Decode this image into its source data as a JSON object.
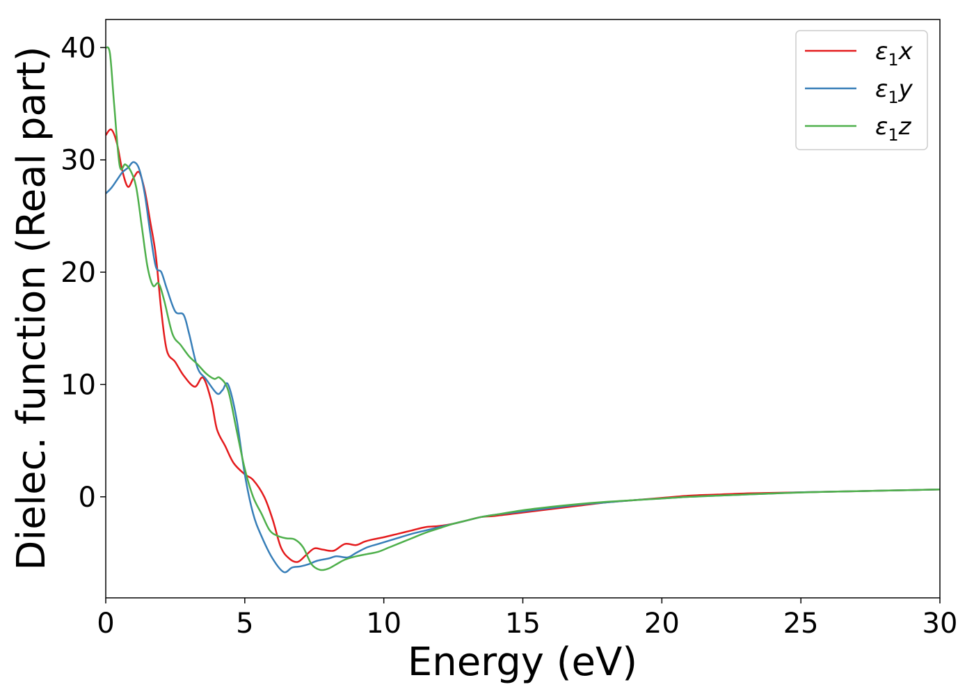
{
  "chart_data": {
    "type": "line",
    "title": "",
    "xlabel": "Energy (eV)",
    "ylabel": "Dielec. function (Real part)",
    "xlim": [
      0,
      30
    ],
    "ylim": [
      -9,
      42.5
    ],
    "xticks": [
      0,
      5,
      10,
      15,
      20,
      25,
      30
    ],
    "yticks": [
      0,
      10,
      20,
      30,
      40
    ],
    "grid": false,
    "legend_position": "top-right",
    "series": [
      {
        "name": "ε1x",
        "symbol": "ε",
        "subscript": "1",
        "suffix": "x",
        "color": "#e41a1c",
        "x": [
          0,
          0.2,
          0.4,
          0.6,
          0.8,
          1.0,
          1.2,
          1.4,
          1.6,
          1.8,
          2.0,
          2.2,
          2.5,
          2.8,
          3.2,
          3.5,
          3.8,
          4.0,
          4.3,
          4.6,
          5.0,
          5.3,
          5.7,
          6.0,
          6.3,
          6.6,
          6.9,
          7.2,
          7.5,
          7.8,
          8.2,
          8.6,
          9.0,
          9.3,
          9.6,
          10.0,
          10.5,
          11.0,
          11.5,
          12.0,
          12.5,
          13.0,
          13.5,
          14.0,
          15.0,
          16.0,
          17.0,
          18.0,
          19.0,
          20.0,
          21.0,
          22.0,
          23.0,
          24.0,
          25.0,
          26.0,
          27.0,
          28.0,
          29.0,
          30.0
        ],
        "y": [
          32.2,
          32.7,
          31.5,
          29.0,
          27.6,
          28.4,
          28.9,
          27.3,
          24.5,
          21.5,
          16.5,
          13.0,
          12.0,
          10.8,
          9.8,
          10.6,
          8.5,
          6.0,
          4.5,
          3.0,
          2.0,
          1.5,
          0.0,
          -2.0,
          -4.5,
          -5.5,
          -5.8,
          -5.2,
          -4.6,
          -4.7,
          -4.8,
          -4.2,
          -4.3,
          -4.0,
          -3.8,
          -3.6,
          -3.3,
          -3.0,
          -2.7,
          -2.6,
          -2.4,
          -2.1,
          -1.8,
          -1.7,
          -1.4,
          -1.1,
          -0.8,
          -0.5,
          -0.3,
          -0.1,
          0.1,
          0.2,
          0.3,
          0.35,
          0.4,
          0.45,
          0.5,
          0.55,
          0.6,
          0.65
        ]
      },
      {
        "name": "ε1y",
        "symbol": "ε",
        "subscript": "1",
        "suffix": "y",
        "color": "#377eb8",
        "x": [
          0,
          0.2,
          0.4,
          0.6,
          0.8,
          1.0,
          1.2,
          1.4,
          1.6,
          1.8,
          2.0,
          2.2,
          2.5,
          2.8,
          3.0,
          3.3,
          3.6,
          4.0,
          4.2,
          4.4,
          4.7,
          5.0,
          5.3,
          5.6,
          6.0,
          6.4,
          6.7,
          7.0,
          7.3,
          7.6,
          8.0,
          8.3,
          8.7,
          9.0,
          9.4,
          9.8,
          10.2,
          10.6,
          11.0,
          11.5,
          12.0,
          12.5,
          13.0,
          13.5,
          14.0,
          15.0,
          16.0,
          17.0,
          18.0,
          19.0,
          20.0,
          21.0,
          22.0,
          23.0,
          24.0,
          25.0,
          26.0,
          27.0,
          28.0,
          29.0,
          30.0
        ],
        "y": [
          27.0,
          27.5,
          28.2,
          28.9,
          29.3,
          29.8,
          29.2,
          27.0,
          23.5,
          20.5,
          20.0,
          18.5,
          16.5,
          16.2,
          14.5,
          11.5,
          10.5,
          9.2,
          9.5,
          10.0,
          7.0,
          2.0,
          -1.5,
          -3.5,
          -5.5,
          -6.7,
          -6.3,
          -6.2,
          -6.0,
          -5.7,
          -5.5,
          -5.3,
          -5.4,
          -5.0,
          -4.5,
          -4.2,
          -3.9,
          -3.6,
          -3.3,
          -3.0,
          -2.7,
          -2.4,
          -2.1,
          -1.8,
          -1.6,
          -1.3,
          -1.0,
          -0.7,
          -0.5,
          -0.3,
          -0.15,
          0.0,
          0.1,
          0.2,
          0.3,
          0.4,
          0.45,
          0.5,
          0.55,
          0.6,
          0.65
        ]
      },
      {
        "name": "ε1z",
        "symbol": "ε",
        "subscript": "1",
        "suffix": "z",
        "color": "#4daf4a",
        "x": [
          0,
          0.15,
          0.3,
          0.5,
          0.7,
          0.9,
          1.1,
          1.3,
          1.5,
          1.7,
          1.9,
          2.1,
          2.4,
          2.7,
          3.0,
          3.3,
          3.6,
          3.9,
          4.1,
          4.4,
          4.7,
          5.0,
          5.3,
          5.6,
          5.9,
          6.2,
          6.5,
          6.8,
          7.1,
          7.4,
          7.7,
          8.0,
          8.3,
          8.6,
          9.0,
          9.4,
          9.8,
          10.2,
          10.6,
          11.0,
          11.5,
          12.0,
          12.5,
          13.0,
          13.5,
          14.0,
          15.0,
          16.0,
          17.0,
          18.0,
          19.0,
          20.0,
          21.0,
          22.0,
          23.0,
          24.0,
          25.0,
          26.0,
          27.0,
          28.0,
          29.0,
          30.0
        ],
        "y": [
          40.0,
          39.5,
          35.0,
          29.5,
          29.6,
          29.0,
          27.5,
          24.0,
          20.5,
          18.8,
          19.0,
          17.5,
          14.5,
          13.5,
          12.5,
          11.8,
          11.0,
          10.5,
          10.6,
          9.5,
          6.0,
          2.5,
          0.0,
          -1.5,
          -3.0,
          -3.5,
          -3.7,
          -3.8,
          -4.5,
          -6.0,
          -6.5,
          -6.4,
          -6.0,
          -5.6,
          -5.3,
          -5.1,
          -4.9,
          -4.5,
          -4.1,
          -3.7,
          -3.2,
          -2.8,
          -2.4,
          -2.1,
          -1.8,
          -1.6,
          -1.2,
          -0.9,
          -0.65,
          -0.45,
          -0.3,
          -0.15,
          0.0,
          0.1,
          0.2,
          0.3,
          0.38,
          0.45,
          0.5,
          0.55,
          0.6,
          0.65
        ]
      }
    ]
  }
}
